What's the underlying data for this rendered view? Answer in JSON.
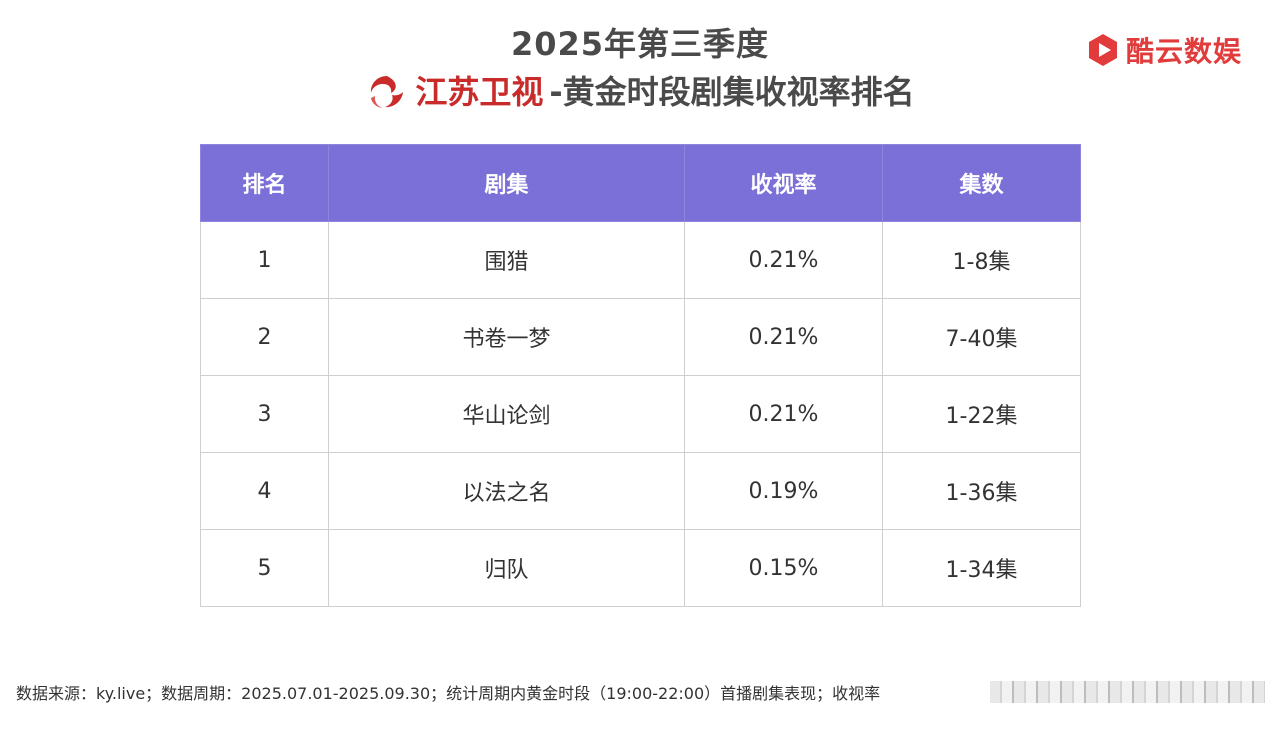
{
  "header": {
    "title_line1": "2025年第三季度",
    "channel_name": "江苏卫视",
    "title_rest": "-黄金时段剧集收视率排名",
    "channel_logo_icon": "jsbc-swirl-logo-icon",
    "channel_color": "#c92b2b"
  },
  "brand": {
    "name": "酷云数娱",
    "icon": "kuyun-play-logo-icon",
    "color": "#e23b3b"
  },
  "table": {
    "header_color": "#7b6fd8",
    "columns": [
      "排名",
      "剧集",
      "收视率",
      "集数"
    ],
    "rows": [
      {
        "rank": "1",
        "drama": "围猎",
        "rating": "0.21%",
        "episodes": "1-8集"
      },
      {
        "rank": "2",
        "drama": "书卷一梦",
        "rating": "0.21%",
        "episodes": "7-40集"
      },
      {
        "rank": "3",
        "drama": "华山论剑",
        "rating": "0.21%",
        "episodes": "1-22集"
      },
      {
        "rank": "4",
        "drama": "以法之名",
        "rating": "0.19%",
        "episodes": "1-36集"
      },
      {
        "rank": "5",
        "drama": "归队",
        "rating": "0.15%",
        "episodes": "1-34集"
      }
    ]
  },
  "footnote": "数据来源：ky.live；数据周期：2025.07.01-2025.09.30；统计周期内黄金时段（19:00-22:00）首播剧集表现；收视率"
}
